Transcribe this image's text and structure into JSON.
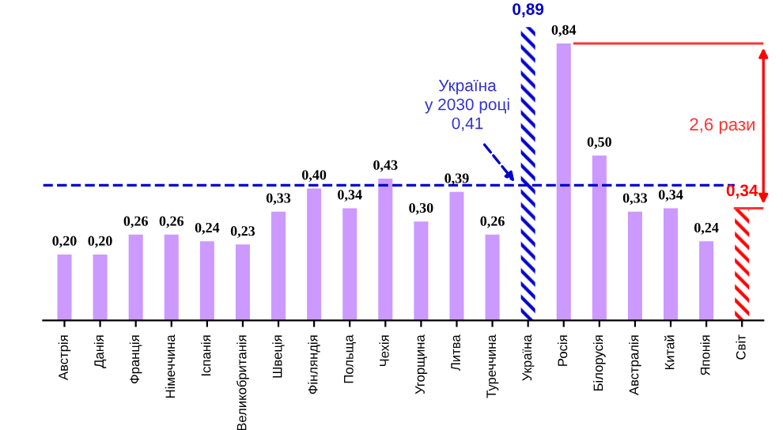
{
  "chart_data": {
    "type": "bar",
    "categories": [
      "Австрія",
      "Данія",
      "Франція",
      "Німеччина",
      "Іспанія",
      "Великобританія",
      "Швеція",
      "Фінляндія",
      "Польща",
      "Чехія",
      "Угорщина",
      "Литва",
      "Туреччина",
      "Україна",
      "Росія",
      "Білорусія",
      "Австралія",
      "Китай",
      "Японія",
      "Світ"
    ],
    "values": [
      0.2,
      0.2,
      0.26,
      0.26,
      0.24,
      0.23,
      0.33,
      0.4,
      0.34,
      0.43,
      0.3,
      0.39,
      0.26,
      0.89,
      0.84,
      0.5,
      0.33,
      0.34,
      0.24,
      0.34
    ],
    "value_labels": [
      "0,20",
      "0,20",
      "0,26",
      "0,26",
      "0,24",
      "0,23",
      "0,33",
      "0,40",
      "0,34",
      "0,43",
      "0,30",
      "0,39",
      "0,26",
      "0,89",
      "0,84",
      "0,50",
      "0,33",
      "0,34",
      "0,24",
      "0,34"
    ],
    "colors": [
      "#cc99ff",
      "#cc99ff",
      "#cc99ff",
      "#cc99ff",
      "#cc99ff",
      "#cc99ff",
      "#cc99ff",
      "#cc99ff",
      "#cc99ff",
      "#cc99ff",
      "#cc99ff",
      "#cc99ff",
      "#cc99ff",
      "#0000cc",
      "#cc99ff",
      "#cc99ff",
      "#cc99ff",
      "#cc99ff",
      "#cc99ff",
      "#ff0000"
    ],
    "ref_lines": [
      {
        "axis": "y",
        "value": 0.41,
        "color": "#0000cc",
        "line_style": "dashed"
      }
    ],
    "annotations": [
      "Україна\nу 2030 році\n0,41",
      "2,6 рази"
    ],
    "tick_labels": "x",
    "grid": false,
    "legend": false
  }
}
